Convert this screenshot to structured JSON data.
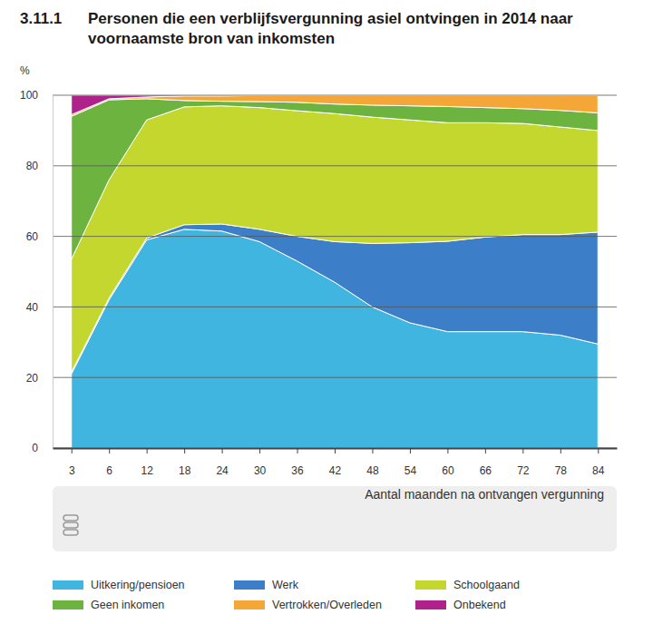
{
  "chart_data": {
    "type": "area",
    "stacked": true,
    "title": "Personen die een verblijfsvergunning asiel ontvingen in 2014 naar voornaamste bron van inkomsten",
    "annotations": [
      "3.11.1"
    ],
    "y_label": "%",
    "x_label": "Aantal maanden na ontvangen vergunning",
    "categories": [
      3,
      6,
      12,
      18,
      24,
      30,
      36,
      42,
      48,
      54,
      60,
      66,
      72,
      78,
      84
    ],
    "ylim": [
      0,
      100
    ],
    "yticks": [
      0,
      20,
      40,
      60,
      80,
      100
    ],
    "grid": true,
    "legend": "bottom",
    "series": [
      {
        "name": "Uitkering/pensioen",
        "color": "#40b5df",
        "values": [
          21,
          42,
          59,
          62,
          61.5,
          58.5,
          53,
          47,
          40,
          35.5,
          33,
          33,
          33,
          32,
          29.5
        ]
      },
      {
        "name": "Werk",
        "color": "#3d7ec9",
        "values": [
          0.5,
          0.5,
          0.5,
          1.3,
          2,
          3.5,
          7,
          11.5,
          18,
          22.7,
          25.6,
          26.8,
          27.5,
          28.5,
          31.7
        ]
      },
      {
        "name": "Schoolgaand",
        "color": "#c3d72f",
        "values": [
          32,
          33.5,
          33.5,
          33.4,
          33.5,
          34.5,
          35.6,
          36.3,
          35.8,
          34.8,
          33.6,
          32.4,
          31.5,
          30.5,
          28.8
        ]
      },
      {
        "name": "Geen inkomen",
        "color": "#6cb43f",
        "values": [
          40.5,
          22.7,
          6,
          1.8,
          1.3,
          1.7,
          2.4,
          2.7,
          3.4,
          4,
          4.6,
          4.3,
          4.2,
          4.7,
          5
        ]
      },
      {
        "name": "Vertrokken/Overleden",
        "color": "#f4a636",
        "values": [
          0.5,
          0.3,
          0.5,
          1.3,
          1.5,
          1.7,
          1.9,
          2.4,
          2.7,
          2.9,
          3.1,
          3.4,
          3.7,
          4.2,
          4.9
        ]
      },
      {
        "name": "Onbekend",
        "color": "#b0228b",
        "values": [
          5.5,
          1,
          0.5,
          0.2,
          0.2,
          0.1,
          0.1,
          0.1,
          0.1,
          0.1,
          0.1,
          0.1,
          0.1,
          0.1,
          0.1
        ]
      }
    ]
  }
}
